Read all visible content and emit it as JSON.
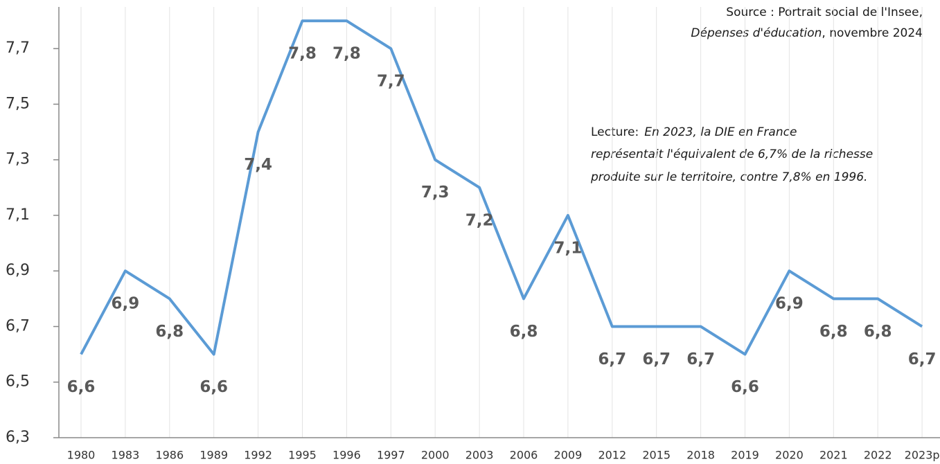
{
  "chart_data": {
    "type": "line",
    "categories": [
      "1980",
      "1983",
      "1986",
      "1989",
      "1992",
      "1995",
      "1996",
      "1997",
      "2000",
      "2003",
      "2006",
      "2009",
      "2012",
      "2015",
      "2018",
      "2019",
      "2020",
      "2021",
      "2022",
      "2023p"
    ],
    "series": [
      {
        "name": "DIE",
        "color": "#5b9bd5",
        "values": [
          6.6,
          6.9,
          6.8,
          6.6,
          7.4,
          7.8,
          7.8,
          7.7,
          7.3,
          7.2,
          6.8,
          7.1,
          6.7,
          6.7,
          6.7,
          6.6,
          6.9,
          6.8,
          6.8,
          6.7
        ],
        "value_labels": [
          "6,6",
          "6,9",
          "6,8",
          "6,6",
          "7,4",
          "7,8",
          "7,8",
          "7,7",
          "7,3",
          "7,2",
          "6,8",
          "7,1",
          "6,7",
          "6,7",
          "6,7",
          "6,6",
          "6,9",
          "6,8",
          "6,8",
          "6,7"
        ]
      }
    ],
    "ylim": [
      6.3,
      7.85
    ],
    "yticks": [
      {
        "value": 6.3,
        "label": "6,3"
      },
      {
        "value": 6.5,
        "label": "6,5"
      },
      {
        "value": 6.7,
        "label": "6,7"
      },
      {
        "value": 6.9,
        "label": "6,9"
      },
      {
        "value": 7.1,
        "label": "7,1"
      },
      {
        "value": 7.3,
        "label": "7,3"
      },
      {
        "value": 7.5,
        "label": "7,5"
      },
      {
        "value": 7.7,
        "label": "7,7"
      }
    ],
    "grid": true,
    "source": {
      "line1": "Source : Portrait social de l'Insee,",
      "line2_italic": "Dépenses d'éducation",
      "line2_rest": ", novembre 2024"
    },
    "lecture": {
      "label": "Lecture:",
      "lines": [
        "En 2023, la DIE en France",
        "représentait l'équivalent de 6,7% de la richesse",
        "produite sur le territoire, contre 7,8% en 1996."
      ]
    }
  }
}
